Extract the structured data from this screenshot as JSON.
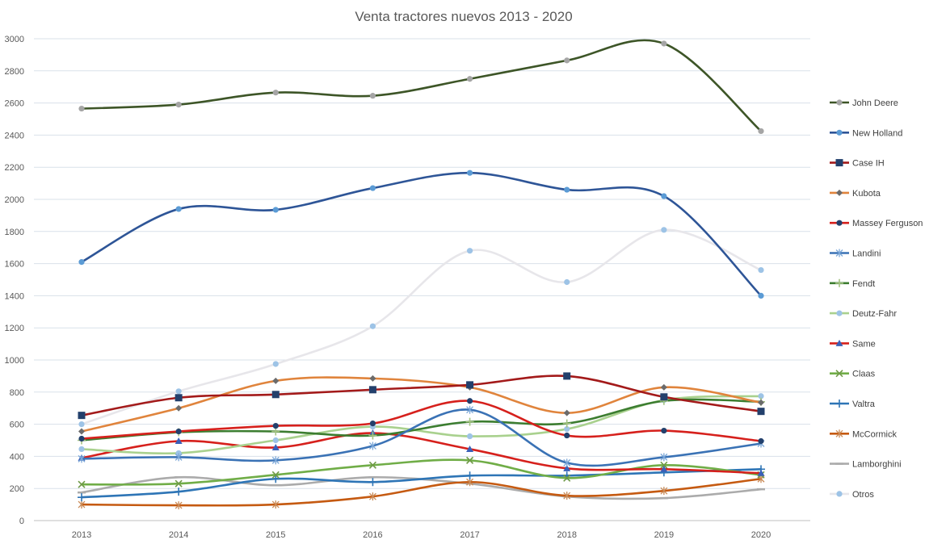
{
  "chart_data": {
    "type": "line",
    "title": "Venta tractores nuevos 2013 - 2020",
    "xlabel": "",
    "ylabel": "",
    "categories": [
      "2013",
      "2014",
      "2015",
      "2016",
      "2017",
      "2018",
      "2019",
      "2020"
    ],
    "ylim": [
      0,
      3000
    ],
    "yticks": [
      0,
      200,
      400,
      600,
      800,
      1000,
      1200,
      1400,
      1600,
      1800,
      2000,
      2200,
      2400,
      2600,
      2800,
      3000
    ],
    "grid": true,
    "legend_position": "right",
    "smooth": true,
    "series": [
      {
        "name": "John Deere",
        "color": "#3d5527",
        "marker": "circle",
        "marker_color": "#a5a5a5",
        "values": [
          2565,
          2590,
          2665,
          2645,
          2750,
          2865,
          2970,
          2425
        ]
      },
      {
        "name": "New Holland",
        "color": "#2e5597",
        "marker": "circle",
        "marker_color": "#5b9bd5",
        "values": [
          1610,
          1940,
          1935,
          2070,
          2165,
          2060,
          2020,
          1400
        ]
      },
      {
        "name": "Case IH",
        "color": "#a31a1a",
        "marker": "square",
        "marker_color": "#23406c",
        "values": [
          655,
          765,
          785,
          815,
          845,
          900,
          770,
          680
        ]
      },
      {
        "name": "Kubota",
        "color": "#e0843c",
        "marker": "diamond",
        "marker_color": "#6b6b6b",
        "values": [
          555,
          700,
          870,
          885,
          830,
          670,
          830,
          735
        ]
      },
      {
        "name": "Massey Ferguson",
        "color": "#d6201c",
        "marker": "circle",
        "marker_color": "#23406c",
        "values": [
          510,
          555,
          590,
          605,
          745,
          530,
          560,
          495
        ]
      },
      {
        "name": "Landini",
        "color": "#3a72b5",
        "marker": "star",
        "marker_color": "#7ba7d8",
        "values": [
          385,
          395,
          375,
          465,
          690,
          360,
          395,
          480
        ]
      },
      {
        "name": "Fendt",
        "color": "#3c7d30",
        "marker": "plus",
        "marker_color": "#a3c281",
        "values": [
          500,
          550,
          555,
          530,
          615,
          605,
          745,
          740
        ]
      },
      {
        "name": "Deutz-Fahr",
        "color": "#a9d18e",
        "marker": "circle",
        "marker_color": "#9dc3e6",
        "values": [
          445,
          420,
          500,
          585,
          525,
          570,
          750,
          775
        ]
      },
      {
        "name": "Same",
        "color": "#d6201c",
        "marker": "triangle",
        "marker_color": "#3a60b8",
        "values": [
          390,
          495,
          455,
          545,
          445,
          325,
          320,
          295
        ]
      },
      {
        "name": "Claas",
        "color": "#70ad47",
        "marker": "x",
        "marker_color": "#6f9a47",
        "values": [
          225,
          230,
          285,
          345,
          375,
          265,
          345,
          285
        ]
      },
      {
        "name": "Valtra",
        "color": "#2e75b6",
        "marker": "plus",
        "marker_color": "#2e75b6",
        "values": [
          145,
          180,
          260,
          240,
          280,
          280,
          300,
          320
        ]
      },
      {
        "name": "McCormick",
        "color": "#c55a11",
        "marker": "star",
        "marker_color": "#c98a56",
        "values": [
          100,
          95,
          100,
          150,
          240,
          155,
          185,
          260
        ]
      },
      {
        "name": "Lamborghini",
        "color": "#ababab",
        "marker": "dash",
        "marker_color": "#ababab",
        "values": [
          175,
          270,
          220,
          270,
          230,
          150,
          140,
          195
        ]
      },
      {
        "name": "Otros",
        "color": "#e7e6ea",
        "marker": "circle",
        "marker_color": "#9dc3e6",
        "values": [
          600,
          805,
          975,
          1210,
          1680,
          1485,
          1810,
          1560
        ]
      }
    ]
  }
}
